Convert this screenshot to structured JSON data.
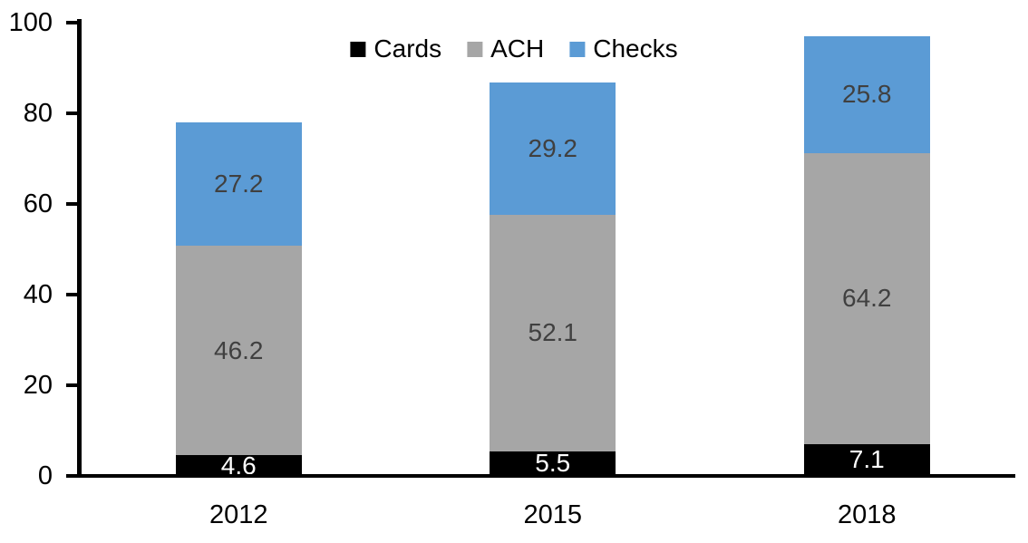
{
  "chart_data": {
    "type": "bar",
    "stacked": true,
    "title": "",
    "xlabel": "",
    "ylabel": "",
    "categories": [
      "2012",
      "2015",
      "2018"
    ],
    "series": [
      {
        "name": "Cards",
        "values": [
          4.6,
          5.5,
          7.1
        ],
        "color": "#000000",
        "label_color": "#FFFFFF"
      },
      {
        "name": "ACH",
        "values": [
          46.2,
          52.1,
          64.2
        ],
        "color": "#A6A6A6",
        "label_color": "#404040"
      },
      {
        "name": "Checks",
        "values": [
          27.2,
          29.2,
          25.8
        ],
        "color": "#5B9BD5",
        "label_color": "#404040"
      }
    ],
    "totals": [
      78.0,
      86.8,
      97.1
    ],
    "ylim": [
      0,
      100
    ],
    "yticks": [
      0,
      20,
      40,
      60,
      80,
      100
    ],
    "grid": false,
    "legend_position": "top-center",
    "legend_labels": [
      "Cards",
      "ACH",
      "Checks"
    ],
    "axis_color": "#000000",
    "background_color": "#FFFFFF",
    "value_labels_shown": true
  }
}
